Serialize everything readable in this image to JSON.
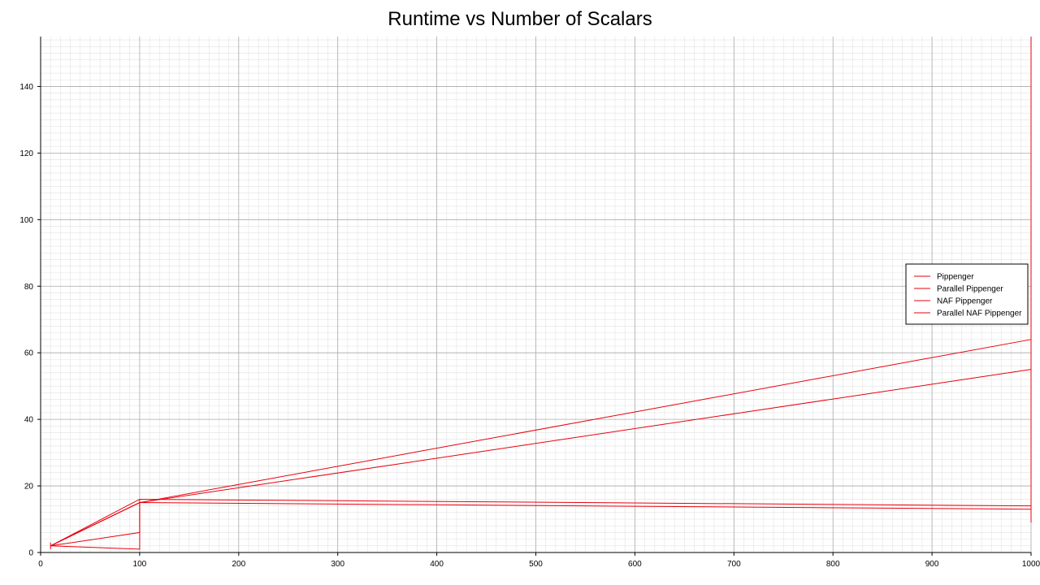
{
  "chart_data": {
    "type": "line",
    "title": "Runtime vs Number of Scalars",
    "xlabel": "",
    "ylabel": "",
    "xlim": [
      0,
      1000
    ],
    "ylim": [
      0,
      155
    ],
    "x_ticks": [
      0,
      100,
      200,
      300,
      400,
      500,
      600,
      700,
      800,
      900,
      1000
    ],
    "y_ticks": [
      0,
      20,
      40,
      60,
      80,
      100,
      120,
      140
    ],
    "grid": true,
    "legend_position": "right",
    "line_color": "#e8000b",
    "x": [
      10,
      100,
      1000
    ],
    "series": [
      {
        "name": "Pippenger",
        "values": [
          2,
          15,
          64
        ]
      },
      {
        "name": "Parallel Pippenger",
        "values": [
          2,
          15,
          55
        ]
      },
      {
        "name": "NAF Pippenger",
        "values": [
          2,
          16,
          14
        ]
      },
      {
        "name": "Parallel NAF Pippenger",
        "values": [
          2,
          15,
          13
        ]
      }
    ],
    "extra_segments": [
      {
        "x": [
          10,
          100,
          100
        ],
        "y": [
          2,
          6,
          15
        ]
      },
      {
        "x": [
          10,
          100,
          100
        ],
        "y": [
          2,
          1,
          16
        ]
      },
      {
        "x": [
          10,
          10
        ],
        "y": [
          1,
          3
        ]
      },
      {
        "x": [
          1000,
          1000
        ],
        "y": [
          9,
          155
        ]
      }
    ]
  }
}
